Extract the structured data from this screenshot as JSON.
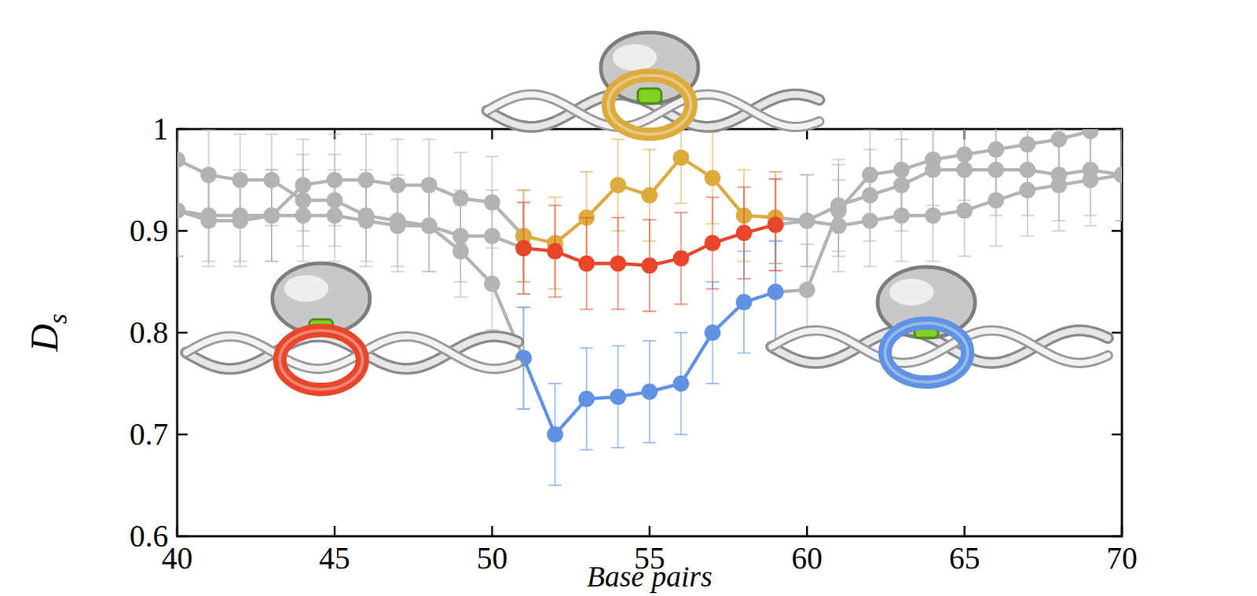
{
  "chart_data": {
    "type": "line",
    "xlabel": "Base pairs",
    "ylabel": "Ds",
    "xlim": [
      40,
      70
    ],
    "ylim": [
      0.6,
      1
    ],
    "xticks": [
      40,
      45,
      50,
      55,
      60,
      65,
      70
    ],
    "yticks": [
      0.6,
      0.7,
      0.8,
      0.9,
      1
    ],
    "grid": false,
    "marker": "circle",
    "series": [
      {
        "color": "#b3b3b3",
        "x": [
          40,
          41,
          42,
          43,
          44,
          45,
          46,
          47,
          48,
          49,
          50,
          51,
          52,
          53,
          54,
          55,
          56,
          57,
          58,
          59,
          60,
          61,
          62,
          63,
          64,
          65,
          66,
          67,
          68,
          69,
          70
        ],
        "values": [
          0.97,
          0.955,
          0.95,
          0.95,
          0.93,
          0.93,
          0.915,
          0.91,
          0.905,
          0.88,
          0.848,
          0.775,
          null,
          null,
          null,
          null,
          null,
          null,
          null,
          0.84,
          0.842,
          0.92,
          0.955,
          0.96,
          0.97,
          0.975,
          0.98,
          0.985,
          0.99,
          0.998,
          null
        ],
        "errors": [
          0.045,
          0.045,
          0.045,
          0.045,
          0.045,
          0.045,
          0.045,
          0.045,
          0.045,
          0.045,
          0.045,
          0.05,
          null,
          null,
          null,
          null,
          null,
          null,
          null,
          0.05,
          0.045,
          0.045,
          0.045,
          0.045,
          0.045,
          0.045,
          0.045,
          0.045,
          0.045,
          0.045,
          null
        ]
      },
      {
        "color": "#b3b3b3",
        "x": [
          40,
          41,
          42,
          43,
          44,
          45,
          46,
          47,
          48,
          49,
          50,
          51,
          52,
          53,
          54,
          55,
          56,
          57,
          58,
          59,
          60,
          61,
          62,
          63,
          64,
          65,
          66,
          67,
          68,
          69,
          70
        ],
        "values": [
          0.92,
          0.915,
          0.915,
          0.915,
          0.945,
          0.95,
          0.95,
          0.945,
          0.945,
          0.932,
          0.928,
          0.895,
          null,
          null,
          null,
          null,
          null,
          null,
          null,
          0.913,
          0.91,
          0.925,
          0.935,
          0.945,
          0.96,
          0.96,
          0.96,
          0.96,
          0.955,
          0.96,
          0.955
        ],
        "errors": [
          0.045,
          0.045,
          0.045,
          0.045,
          0.045,
          0.045,
          0.045,
          0.045,
          0.045,
          0.045,
          0.045,
          0.045,
          null,
          null,
          null,
          null,
          null,
          null,
          null,
          0.045,
          0.045,
          0.045,
          0.045,
          0.045,
          0.045,
          0.045,
          0.045,
          0.045,
          0.045,
          0.045,
          0.045
        ]
      },
      {
        "color": "#b3b3b3",
        "x": [
          40,
          41,
          42,
          43,
          44,
          45,
          46,
          47,
          48,
          49,
          50,
          51,
          52,
          53,
          54,
          55,
          56,
          57,
          58,
          59,
          60,
          61,
          62,
          63,
          64,
          65,
          66,
          67,
          68,
          69,
          70
        ],
        "values": [
          0.92,
          0.91,
          0.91,
          0.915,
          0.915,
          0.915,
          0.91,
          0.905,
          0.905,
          0.895,
          0.895,
          0.883,
          null,
          null,
          null,
          null,
          null,
          null,
          null,
          0.906,
          0.91,
          0.905,
          0.91,
          0.915,
          0.915,
          0.92,
          0.93,
          0.94,
          0.945,
          0.95,
          0.955
        ],
        "errors": [
          0.045,
          0.045,
          0.045,
          0.045,
          0.045,
          0.045,
          0.045,
          0.045,
          0.045,
          0.045,
          0.045,
          0.045,
          null,
          null,
          null,
          null,
          null,
          null,
          null,
          0.045,
          0.045,
          0.045,
          0.045,
          0.045,
          0.045,
          0.045,
          0.045,
          0.045,
          0.045,
          0.045,
          0.045
        ]
      },
      {
        "color": "#dcab3e",
        "x": [
          51,
          52,
          53,
          54,
          55,
          56,
          57,
          58,
          59
        ],
        "values": [
          0.895,
          0.888,
          0.913,
          0.945,
          0.935,
          0.972,
          0.952,
          0.915,
          0.913
        ],
        "errors": [
          0.045,
          0.045,
          0.045,
          0.045,
          0.045,
          0.045,
          0.045,
          0.045,
          0.045
        ]
      },
      {
        "color": "#e8462b",
        "x": [
          51,
          52,
          53,
          54,
          55,
          56,
          57,
          58,
          59
        ],
        "values": [
          0.883,
          0.88,
          0.868,
          0.868,
          0.866,
          0.873,
          0.888,
          0.898,
          0.906
        ],
        "errors": [
          0.045,
          0.045,
          0.045,
          0.045,
          0.045,
          0.045,
          0.045,
          0.045,
          0.045
        ]
      },
      {
        "color": "#5f92e2",
        "x": [
          51,
          52,
          53,
          54,
          55,
          56,
          57,
          58,
          59
        ],
        "values": [
          0.775,
          0.7,
          0.735,
          0.737,
          0.742,
          0.75,
          0.8,
          0.83,
          0.84
        ],
        "errors": [
          0.05,
          0.05,
          0.05,
          0.05,
          0.05,
          0.05,
          0.05,
          0.05,
          0.05
        ]
      }
    ]
  }
}
